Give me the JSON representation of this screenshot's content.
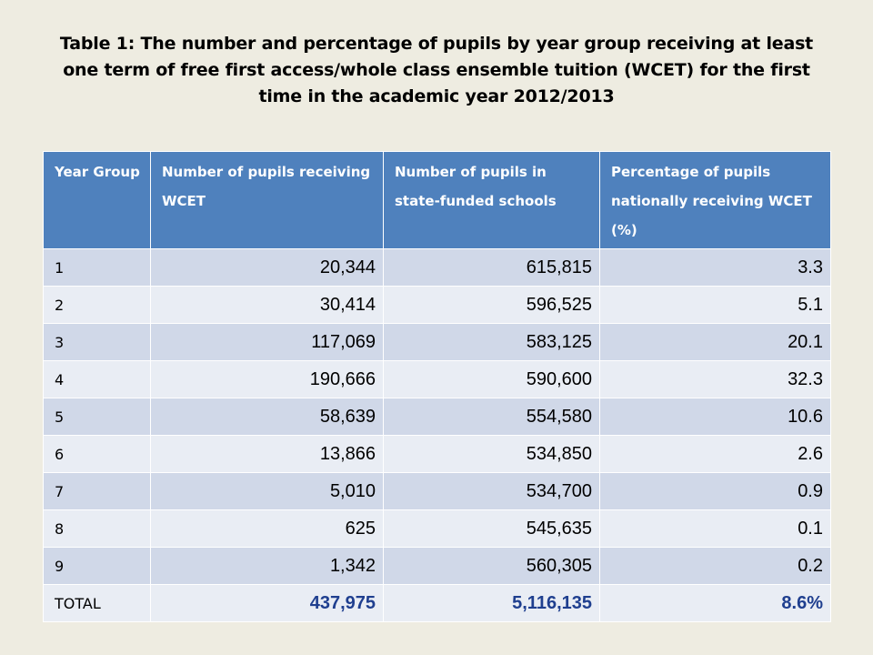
{
  "title": "Table 1: The number and percentage of pupils by year group receiving at least one term of free first access/whole class ensemble tuition (WCET) for the first time in the academic year 2012/2013",
  "table": {
    "headers": [
      "Year Group",
      "Number of pupils receiving WCET",
      "Number of pupils in state-funded schools",
      "Percentage of pupils nationally receiving WCET (%)"
    ],
    "rows": [
      [
        "1",
        "20,344",
        "615,815",
        "3.3"
      ],
      [
        "2",
        "30,414",
        "596,525",
        "5.1"
      ],
      [
        "3",
        "117,069",
        "583,125",
        "20.1"
      ],
      [
        "4",
        "190,666",
        "590,600",
        "32.3"
      ],
      [
        "5",
        "58,639",
        "554,580",
        "10.6"
      ],
      [
        "6",
        "13,866",
        "534,850",
        "2.6"
      ],
      [
        "7",
        "5,010",
        "534,700",
        "0.9"
      ],
      [
        "8",
        "625",
        "545,635",
        "0.1"
      ],
      [
        "9",
        "1,342",
        "560,305",
        "0.2"
      ]
    ],
    "total": [
      "TOTAL",
      "437,975",
      "5,116,135",
      "8.6%"
    ]
  },
  "colors": {
    "header_bg": "#4f81bd",
    "row_odd": "#d0d8e8",
    "row_even": "#e9edf4",
    "total_text": "#1f3f8f",
    "slide_bg": "#eeece1"
  }
}
